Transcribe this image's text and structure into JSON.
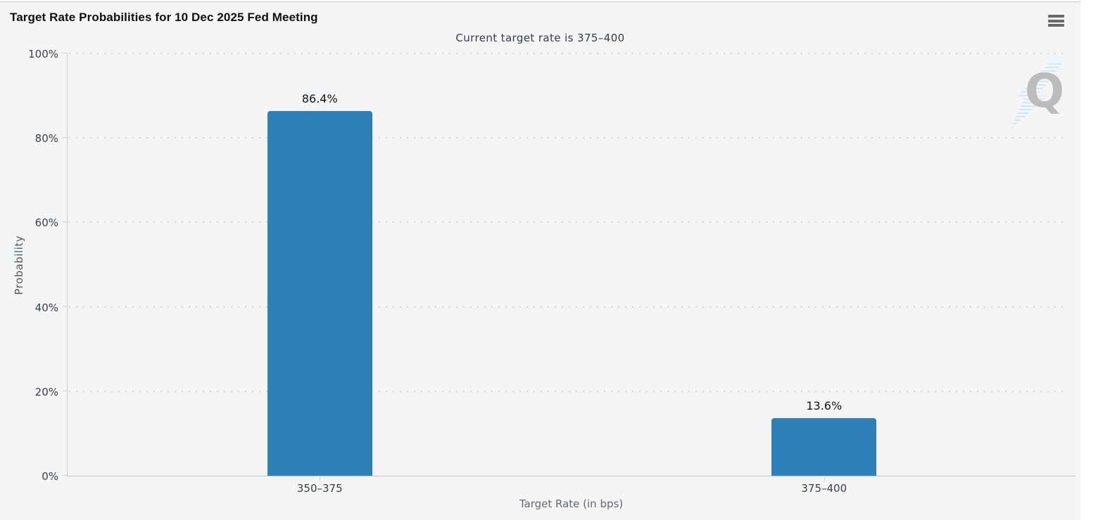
{
  "header": {
    "title": "Target Rate Probabilities for 10 Dec 2025 Fed Meeting",
    "menu_tooltip": "Chart context menu"
  },
  "chart_data": {
    "type": "bar",
    "title": "Target Rate Probabilities for 10 Dec 2025 Fed Meeting",
    "subtitle": "Current target rate is 375–400",
    "categories": [
      "350–375",
      "375–400"
    ],
    "values": [
      86.4,
      13.6
    ],
    "value_labels": [
      "86.4%",
      "13.6%"
    ],
    "xlabel": "Target Rate (in bps)",
    "ylabel": "Probability",
    "ylim": [
      0,
      100
    ],
    "ytick_step": 20,
    "ytick_labels": [
      "0%",
      "20%",
      "40%",
      "60%",
      "80%",
      "100%"
    ],
    "grid": "dotted-horizontal",
    "legend": "none",
    "watermark_text": "Q",
    "colors": {
      "bar": "#2e80b9",
      "background": "#f5f5f5",
      "axis_line": "#cccccc",
      "gridline": "#dadada",
      "title_text": "#111111",
      "subtitle_text": "#343b49",
      "tick_text": "#3a3f48",
      "axis_title_text": "#65686e",
      "watermark_q": "#bcbcbc",
      "watermark_bolt": "#cde9f6"
    }
  }
}
